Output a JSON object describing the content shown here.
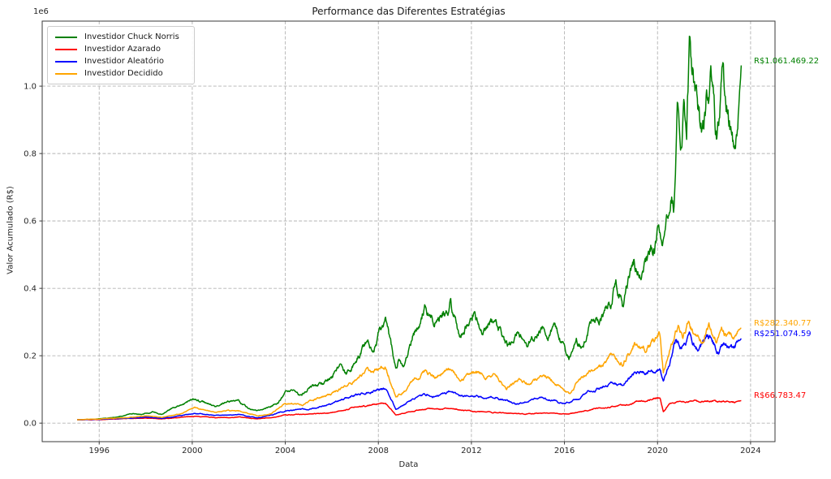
{
  "chart_data": {
    "type": "line",
    "title": "Performance das Diferentes Estratégias",
    "xlabel": "Data",
    "ylabel": "Valor Acumulado (R$)",
    "y_offset_label": "1e6",
    "grid": true,
    "grid_style": "dashed",
    "grid_color": "#b3b3b3",
    "text_color": "#262626",
    "spine_color": "#3a3a3a",
    "legend_position": "upper-left",
    "x_range": [
      1993.55,
      2025.05
    ],
    "y_range": [
      -55000,
      1193000
    ],
    "x_ticks": [
      {
        "label": "1996",
        "value": 1996
      },
      {
        "label": "2000",
        "value": 2000
      },
      {
        "label": "2004",
        "value": 2004
      },
      {
        "label": "2008",
        "value": 2008
      },
      {
        "label": "2012",
        "value": 2012
      },
      {
        "label": "2016",
        "value": 2016
      },
      {
        "label": "2020",
        "value": 2020
      },
      {
        "label": "2024",
        "value": 2024
      }
    ],
    "y_ticks": [
      {
        "label": "0.0",
        "value": 0
      },
      {
        "label": "0.2",
        "value": 200000
      },
      {
        "label": "0.4",
        "value": 400000
      },
      {
        "label": "0.6",
        "value": 600000
      },
      {
        "label": "0.8",
        "value": 800000
      },
      {
        "label": "1.0",
        "value": 1000000
      }
    ],
    "series": [
      {
        "name": "Investidor Chuck Norris",
        "color": "#008000",
        "end_label": "R$1.061.469.22",
        "final_value": 1061469.22,
        "seed": 17,
        "jitter": 0.06,
        "points": [
          [
            1995.05,
            10000
          ],
          [
            1995.5,
            11000
          ],
          [
            1996.0,
            13000
          ],
          [
            1996.5,
            15500
          ],
          [
            1997.0,
            21000
          ],
          [
            1997.5,
            30000
          ],
          [
            1997.8,
            26000
          ],
          [
            1998.3,
            34000
          ],
          [
            1998.7,
            27000
          ],
          [
            1999.0,
            40000
          ],
          [
            1999.5,
            55000
          ],
          [
            2000.1,
            72000
          ],
          [
            2000.5,
            62000
          ],
          [
            2001.0,
            48000
          ],
          [
            2001.5,
            60000
          ],
          [
            2002.0,
            64000
          ],
          [
            2002.4,
            45000
          ],
          [
            2002.8,
            36000
          ],
          [
            2003.3,
            46000
          ],
          [
            2003.7,
            60000
          ],
          [
            2004.0,
            88000
          ],
          [
            2004.4,
            95000
          ],
          [
            2004.7,
            80000
          ],
          [
            2005.0,
            100000
          ],
          [
            2005.5,
            113000
          ],
          [
            2006.0,
            135000
          ],
          [
            2006.4,
            170000
          ],
          [
            2006.6,
            145000
          ],
          [
            2007.0,
            181000
          ],
          [
            2007.5,
            243000
          ],
          [
            2007.8,
            220000
          ],
          [
            2008.0,
            260000
          ],
          [
            2008.3,
            295000
          ],
          [
            2008.5,
            240000
          ],
          [
            2008.75,
            150000
          ],
          [
            2008.9,
            185000
          ],
          [
            2009.1,
            170000
          ],
          [
            2009.5,
            265000
          ],
          [
            2009.8,
            300000
          ],
          [
            2010.0,
            345000
          ],
          [
            2010.4,
            300000
          ],
          [
            2010.8,
            340000
          ],
          [
            2011.1,
            360000
          ],
          [
            2011.5,
            250000
          ],
          [
            2011.8,
            300000
          ],
          [
            2012.1,
            340000
          ],
          [
            2012.5,
            267000
          ],
          [
            2012.8,
            300000
          ],
          [
            2013.0,
            308000
          ],
          [
            2013.3,
            260000
          ],
          [
            2013.6,
            227000
          ],
          [
            2014.0,
            280000
          ],
          [
            2014.4,
            231000
          ],
          [
            2014.8,
            262000
          ],
          [
            2015.0,
            296000
          ],
          [
            2015.3,
            267000
          ],
          [
            2015.6,
            284000
          ],
          [
            2015.9,
            240000
          ],
          [
            2016.2,
            188000
          ],
          [
            2016.5,
            245000
          ],
          [
            2016.8,
            230000
          ],
          [
            2017.2,
            310000
          ],
          [
            2017.5,
            295000
          ],
          [
            2018.0,
            350000
          ],
          [
            2018.2,
            425000
          ],
          [
            2018.5,
            350000
          ],
          [
            2019.0,
            465000
          ],
          [
            2019.3,
            430000
          ],
          [
            2019.7,
            505000
          ],
          [
            2020.05,
            578000
          ],
          [
            2020.2,
            484000
          ],
          [
            2020.45,
            640000
          ],
          [
            2020.6,
            700000
          ],
          [
            2020.7,
            660000
          ],
          [
            2020.85,
            905000
          ],
          [
            2021.0,
            810000
          ],
          [
            2021.15,
            950000
          ],
          [
            2021.25,
            890000
          ],
          [
            2021.4,
            1140000
          ],
          [
            2021.6,
            1000000
          ],
          [
            2021.9,
            867000
          ],
          [
            2022.1,
            950000
          ],
          [
            2022.3,
            1048000
          ],
          [
            2022.55,
            836000
          ],
          [
            2022.8,
            1036000
          ],
          [
            2023.0,
            940000
          ],
          [
            2023.3,
            848000
          ],
          [
            2023.45,
            920000
          ],
          [
            2023.6,
            1061469.22
          ]
        ]
      },
      {
        "name": "Investidor Azarado",
        "color": "#ff0000",
        "end_label": "R$66.783.47",
        "final_value": 66783.47,
        "seed": 29,
        "jitter": 0.05,
        "points": [
          [
            1995.05,
            10000
          ],
          [
            1996.0,
            10500
          ],
          [
            1997.0,
            13000
          ],
          [
            1998.0,
            15000
          ],
          [
            1998.7,
            12000
          ],
          [
            1999.5,
            17000
          ],
          [
            2000.1,
            21000
          ],
          [
            2001.0,
            16000
          ],
          [
            2002.0,
            18000
          ],
          [
            2002.8,
            12000
          ],
          [
            2003.5,
            18000
          ],
          [
            2004.0,
            24000
          ],
          [
            2005.0,
            27000
          ],
          [
            2006.0,
            31000
          ],
          [
            2007.0,
            48000
          ],
          [
            2007.6,
            52000
          ],
          [
            2008.3,
            60000
          ],
          [
            2008.75,
            24000
          ],
          [
            2009.3,
            32000
          ],
          [
            2009.7,
            38000
          ],
          [
            2010.1,
            43000
          ],
          [
            2010.6,
            40000
          ],
          [
            2011.1,
            45000
          ],
          [
            2011.6,
            38000
          ],
          [
            2012.0,
            34000
          ],
          [
            2012.8,
            33000
          ],
          [
            2013.5,
            30000
          ],
          [
            2014.2,
            27000
          ],
          [
            2015.0,
            29000
          ],
          [
            2015.6,
            28000
          ],
          [
            2016.2,
            26500
          ],
          [
            2017.0,
            38000
          ],
          [
            2018.0,
            50500
          ],
          [
            2018.6,
            53000
          ],
          [
            2019.0,
            62500
          ],
          [
            2019.5,
            67000
          ],
          [
            2020.1,
            74500
          ],
          [
            2020.25,
            34500
          ],
          [
            2020.5,
            58000
          ],
          [
            2021.0,
            63500
          ],
          [
            2021.5,
            67500
          ],
          [
            2021.8,
            61500
          ],
          [
            2022.2,
            66500
          ],
          [
            2022.6,
            62000
          ],
          [
            2023.0,
            65500
          ],
          [
            2023.3,
            61500
          ],
          [
            2023.6,
            66783.47
          ]
        ]
      },
      {
        "name": "Investidor Aleatório",
        "color": "#0000ff",
        "end_label": "R$251.074.59",
        "final_value": 251074.59,
        "seed": 43,
        "jitter": 0.05,
        "points": [
          [
            1995.05,
            10000
          ],
          [
            1996.0,
            11000
          ],
          [
            1997.0,
            14000
          ],
          [
            1998.0,
            17000
          ],
          [
            1998.7,
            14000
          ],
          [
            1999.5,
            22000
          ],
          [
            2000.1,
            29000
          ],
          [
            2001.0,
            22000
          ],
          [
            2002.0,
            25000
          ],
          [
            2002.8,
            16000
          ],
          [
            2003.5,
            25000
          ],
          [
            2004.0,
            36000
          ],
          [
            2005.0,
            42000
          ],
          [
            2006.0,
            55000
          ],
          [
            2007.0,
            84000
          ],
          [
            2007.5,
            95000
          ],
          [
            2008.3,
            104000
          ],
          [
            2008.75,
            43000
          ],
          [
            2009.2,
            58000
          ],
          [
            2009.6,
            72000
          ],
          [
            2010.0,
            85000
          ],
          [
            2010.5,
            78000
          ],
          [
            2011.1,
            96000
          ],
          [
            2011.5,
            80000
          ],
          [
            2012.0,
            82000
          ],
          [
            2012.5,
            74000
          ],
          [
            2013.0,
            78000
          ],
          [
            2013.5,
            66000
          ],
          [
            2014.0,
            58000
          ],
          [
            2014.5,
            66000
          ],
          [
            2015.0,
            75000
          ],
          [
            2015.5,
            70000
          ],
          [
            2016.0,
            58000
          ],
          [
            2016.5,
            70000
          ],
          [
            2017.0,
            92000
          ],
          [
            2017.5,
            104000
          ],
          [
            2018.0,
            118000
          ],
          [
            2018.5,
            110000
          ],
          [
            2019.0,
            142000
          ],
          [
            2019.5,
            150000
          ],
          [
            2020.1,
            159000
          ],
          [
            2020.25,
            123000
          ],
          [
            2020.5,
            170000
          ],
          [
            2020.8,
            243000
          ],
          [
            2021.0,
            225000
          ],
          [
            2021.4,
            263000
          ],
          [
            2021.7,
            222000
          ],
          [
            2022.0,
            242000
          ],
          [
            2022.3,
            258000
          ],
          [
            2022.6,
            212000
          ],
          [
            2022.9,
            237000
          ],
          [
            2023.2,
            215000
          ],
          [
            2023.45,
            237000
          ],
          [
            2023.6,
            251074.59
          ]
        ]
      },
      {
        "name": "Investidor Decidido",
        "color": "#ffa500",
        "end_label": "R$282.340.77",
        "final_value": 282340.77,
        "seed": 61,
        "jitter": 0.05,
        "points": [
          [
            1995.05,
            10000
          ],
          [
            1996.0,
            12000
          ],
          [
            1997.0,
            16000
          ],
          [
            1998.0,
            21000
          ],
          [
            1998.7,
            16500
          ],
          [
            1999.5,
            28000
          ],
          [
            2000.1,
            46000
          ],
          [
            2000.6,
            38000
          ],
          [
            2001.0,
            32000
          ],
          [
            2001.5,
            37000
          ],
          [
            2002.0,
            36000
          ],
          [
            2002.8,
            21000
          ],
          [
            2003.4,
            28000
          ],
          [
            2004.0,
            60000
          ],
          [
            2004.7,
            52000
          ],
          [
            2005.0,
            64000
          ],
          [
            2006.0,
            87000
          ],
          [
            2006.4,
            100000
          ],
          [
            2007.0,
            128000
          ],
          [
            2007.5,
            150000
          ],
          [
            2008.0,
            160000
          ],
          [
            2008.3,
            170000
          ],
          [
            2008.75,
            80000
          ],
          [
            2009.2,
            100000
          ],
          [
            2009.6,
            135000
          ],
          [
            2010.0,
            152000
          ],
          [
            2010.5,
            138000
          ],
          [
            2011.1,
            163000
          ],
          [
            2011.5,
            123000
          ],
          [
            2012.2,
            154000
          ],
          [
            2012.6,
            135000
          ],
          [
            2013.0,
            147000
          ],
          [
            2013.5,
            104000
          ],
          [
            2014.0,
            130000
          ],
          [
            2014.5,
            117000
          ],
          [
            2015.0,
            135000
          ],
          [
            2015.5,
            126000
          ],
          [
            2016.0,
            95000
          ],
          [
            2016.25,
            85000
          ],
          [
            2016.6,
            128000
          ],
          [
            2017.0,
            147000
          ],
          [
            2017.5,
            160000
          ],
          [
            2018.0,
            195000
          ],
          [
            2018.5,
            172000
          ],
          [
            2019.0,
            236000
          ],
          [
            2019.5,
            220000
          ],
          [
            2020.1,
            272000
          ],
          [
            2020.25,
            152000
          ],
          [
            2020.5,
            210000
          ],
          [
            2020.9,
            284000
          ],
          [
            2021.1,
            260000
          ],
          [
            2021.3,
            300000
          ],
          [
            2021.6,
            262000
          ],
          [
            2021.9,
            242000
          ],
          [
            2022.2,
            285000
          ],
          [
            2022.5,
            247000
          ],
          [
            2022.8,
            280000
          ],
          [
            2023.1,
            252000
          ],
          [
            2023.35,
            268000
          ],
          [
            2023.6,
            282340.77
          ]
        ]
      }
    ]
  }
}
